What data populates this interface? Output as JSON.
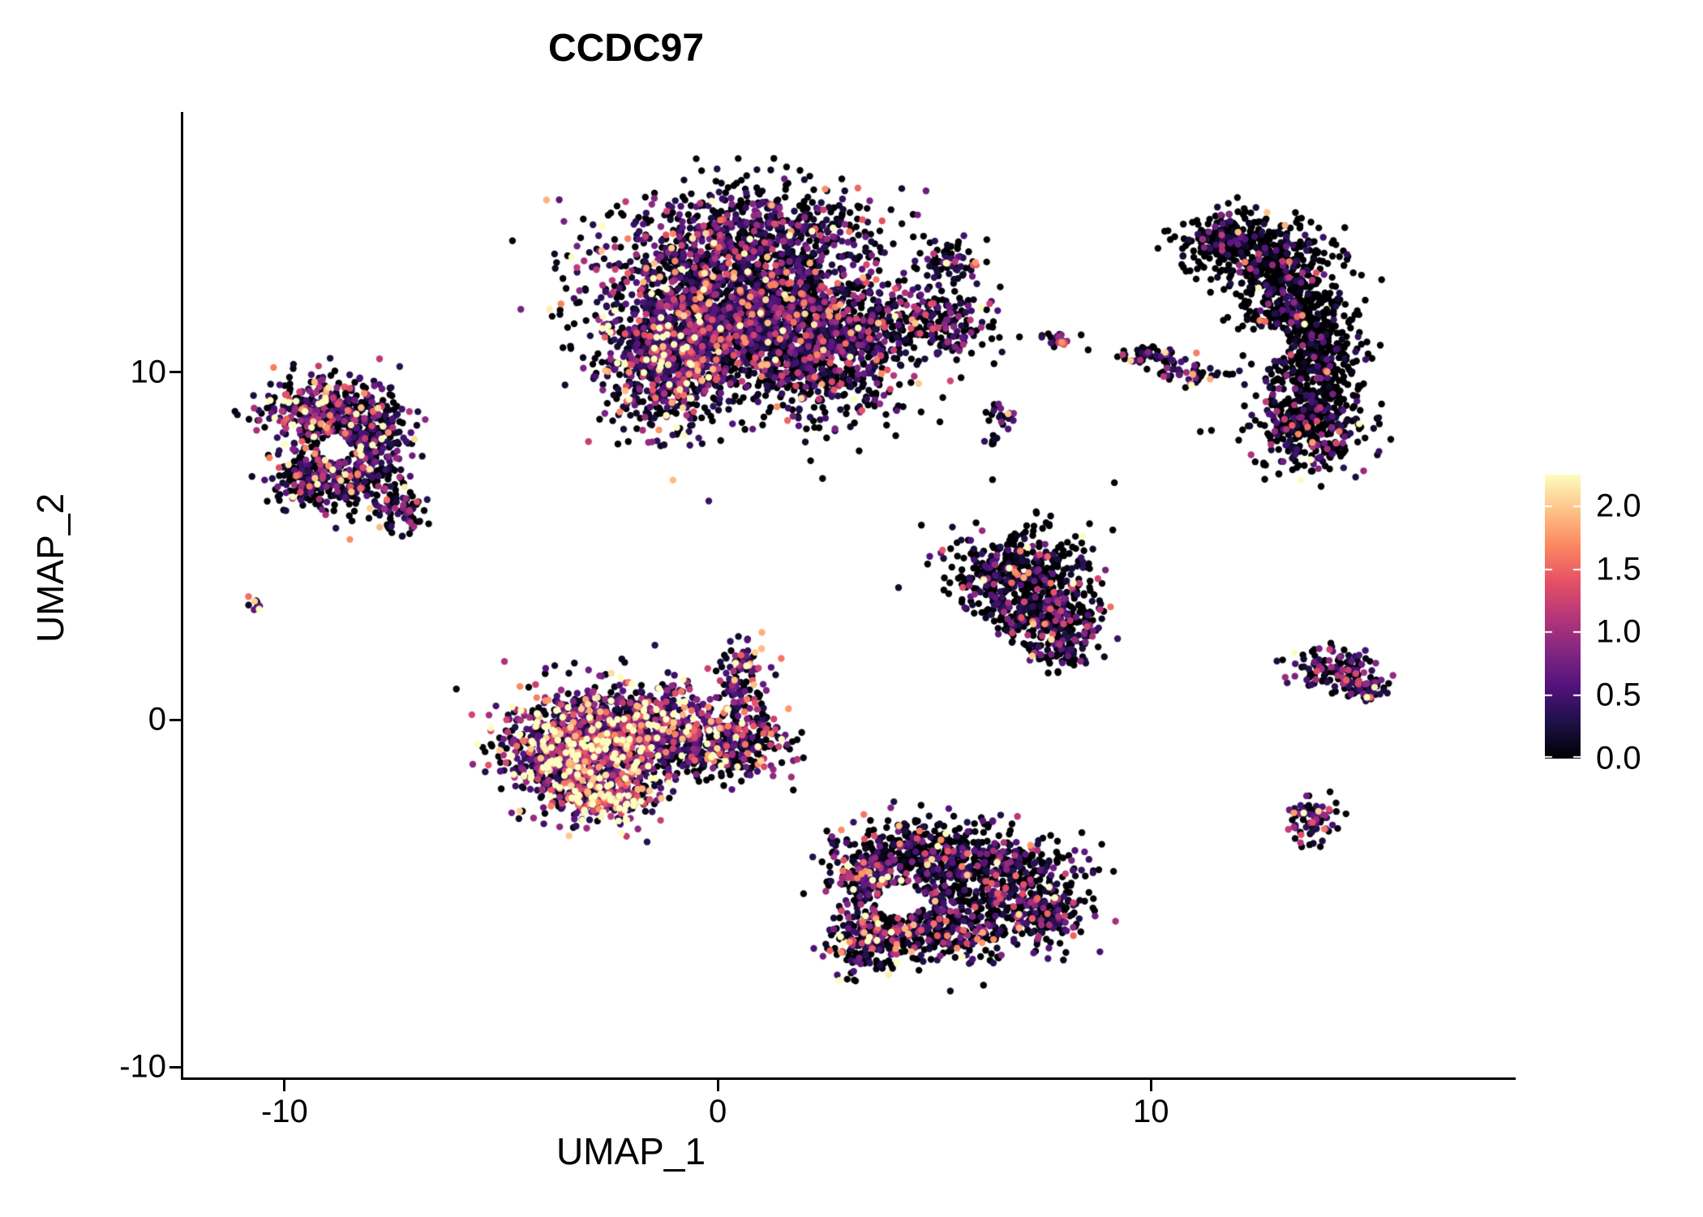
{
  "chart_data": {
    "type": "scatter",
    "title": "CCDC97",
    "xlabel": "UMAP_1",
    "ylabel": "UMAP_2",
    "x_ticks": [
      "-10",
      "0",
      "10"
    ],
    "x_tick_values": [
      -10,
      0,
      10
    ],
    "y_ticks": [
      "10",
      "0",
      "-10"
    ],
    "y_tick_values": [
      10,
      0,
      -10
    ],
    "xlim": [
      -12.3,
      18.4
    ],
    "ylim": [
      -10.3,
      17.45
    ],
    "grid": false,
    "background": "#ffffff",
    "point_radius_px": 4.2,
    "seed": 20,
    "colorbar": {
      "position": "right",
      "colormap": "magma",
      "domain": [
        0,
        2.25
      ],
      "ticks": [
        {
          "label": "2.0",
          "value": 2.0
        },
        {
          "label": "1.5",
          "value": 1.5
        },
        {
          "label": "1.0",
          "value": 1.0
        },
        {
          "label": "0.5",
          "value": 0.5
        },
        {
          "label": "0.0",
          "value": 0.0
        }
      ],
      "stops": [
        {
          "t": 0.0,
          "color": "#000004"
        },
        {
          "t": 0.125,
          "color": "#1d1147"
        },
        {
          "t": 0.25,
          "color": "#51127c"
        },
        {
          "t": 0.375,
          "color": "#822681"
        },
        {
          "t": 0.5,
          "color": "#b63679"
        },
        {
          "t": 0.625,
          "color": "#e65164"
        },
        {
          "t": 0.75,
          "color": "#fb8861"
        },
        {
          "t": 0.875,
          "color": "#fec287"
        },
        {
          "t": 1.0,
          "color": "#fcfdbf"
        }
      ]
    },
    "clusters": [
      {
        "name": "top-center-large",
        "blobs": [
          {
            "cx": 0.3,
            "cy": 12.3,
            "sdx": 1.5,
            "sdy": 1.2,
            "n": 1600,
            "p0": 0.38,
            "scale": 0.6
          },
          {
            "cx": 2.4,
            "cy": 10.8,
            "sdx": 1.1,
            "sdy": 1.0,
            "n": 1000,
            "p0": 0.42,
            "scale": 0.55
          },
          {
            "cx": -1.3,
            "cy": 9.9,
            "sdx": 0.8,
            "sdy": 0.9,
            "n": 450,
            "p0": 0.3,
            "scale": 0.7
          },
          {
            "cx": -0.6,
            "cy": 11.2,
            "sdx": 0.7,
            "sdy": 0.8,
            "n": 400,
            "p0": 0.3,
            "scale": 0.65
          },
          {
            "cx": 4.9,
            "cy": 11.4,
            "sdx": 0.8,
            "sdy": 0.45,
            "n": 220,
            "p0": 0.45,
            "scale": 0.55
          },
          {
            "cx": 1.3,
            "cy": 14.3,
            "sdx": 1.3,
            "sdy": 0.6,
            "n": 320,
            "p0": 0.5,
            "scale": 0.5
          },
          {
            "cx": 5.3,
            "cy": 13.2,
            "sdx": 0.35,
            "sdy": 0.3,
            "n": 70,
            "p0": 0.5,
            "scale": 0.5
          }
        ]
      },
      {
        "name": "left",
        "holes": [
          {
            "x": -8.85,
            "y": 7.8,
            "r": 0.38
          }
        ],
        "blobs": [
          {
            "cx": -9.2,
            "cy": 8.9,
            "sdx": 0.6,
            "sdy": 0.55,
            "n": 330,
            "p0": 0.3,
            "scale": 0.8
          },
          {
            "cx": -8.3,
            "cy": 7.3,
            "sdx": 0.55,
            "sdy": 0.65,
            "n": 300,
            "p0": 0.4,
            "scale": 0.6
          },
          {
            "cx": -9.4,
            "cy": 7.0,
            "sdx": 0.45,
            "sdy": 0.5,
            "n": 170,
            "p0": 0.45,
            "scale": 0.55
          },
          {
            "cx": -8.0,
            "cy": 8.6,
            "sdx": 0.5,
            "sdy": 0.5,
            "n": 150,
            "p0": 0.4,
            "scale": 0.6
          },
          {
            "cx": -7.3,
            "cy": 5.9,
            "sdx": 0.3,
            "sdy": 0.3,
            "n": 55,
            "p0": 0.4,
            "scale": 0.6
          }
        ]
      },
      {
        "name": "tiny-far-left",
        "blobs": [
          {
            "cx": -10.7,
            "cy": 3.3,
            "sdx": 0.1,
            "sdy": 0.1,
            "n": 9,
            "p0": 0.15,
            "scale": 0.9
          }
        ]
      },
      {
        "name": "center-left-high-expression",
        "blobs": [
          {
            "cx": -3.3,
            "cy": -0.9,
            "sdx": 0.8,
            "sdy": 0.75,
            "n": 850,
            "p0": 0.12,
            "scale": 0.95
          },
          {
            "cx": -1.8,
            "cy": -0.3,
            "sdx": 0.95,
            "sdy": 0.7,
            "n": 650,
            "p0": 0.2,
            "scale": 0.8
          },
          {
            "cx": 0.2,
            "cy": -0.7,
            "sdx": 0.75,
            "sdy": 0.5,
            "n": 320,
            "p0": 0.3,
            "scale": 0.7
          },
          {
            "cx": 0.55,
            "cy": 1.1,
            "sdx": 0.3,
            "sdy": 0.65,
            "n": 110,
            "p0": 0.3,
            "scale": 0.75
          },
          {
            "cx": -2.6,
            "cy": -2.2,
            "sdx": 0.6,
            "sdy": 0.4,
            "n": 250,
            "p0": 0.1,
            "scale": 1.05
          }
        ]
      },
      {
        "name": "middle-triangle",
        "blobs": [
          {
            "cx": 7.0,
            "cy": 4.3,
            "sdx": 0.8,
            "sdy": 0.6,
            "n": 420,
            "p0": 0.6,
            "scale": 0.5
          },
          {
            "cx": 7.6,
            "cy": 3.0,
            "sdx": 0.65,
            "sdy": 0.55,
            "n": 280,
            "p0": 0.55,
            "scale": 0.55
          },
          {
            "cx": 7.9,
            "cy": 2.0,
            "sdx": 0.35,
            "sdy": 0.3,
            "n": 80,
            "p0": 0.55,
            "scale": 0.5
          }
        ]
      },
      {
        "name": "right-crescent-dark",
        "holes": [
          {
            "x": 12.7,
            "y": 10.8,
            "r": 0.5
          }
        ],
        "blobs": [
          {
            "cx": 12.4,
            "cy": 13.5,
            "sdx": 0.85,
            "sdy": 0.5,
            "n": 330,
            "p0": 0.75,
            "scale": 0.45
          },
          {
            "cx": 13.3,
            "cy": 12.0,
            "sdx": 0.6,
            "sdy": 0.75,
            "n": 380,
            "p0": 0.8,
            "scale": 0.4
          },
          {
            "cx": 13.8,
            "cy": 10.2,
            "sdx": 0.55,
            "sdy": 0.8,
            "n": 380,
            "p0": 0.8,
            "scale": 0.4
          },
          {
            "cx": 13.6,
            "cy": 8.4,
            "sdx": 0.7,
            "sdy": 0.6,
            "n": 330,
            "p0": 0.65,
            "scale": 0.55
          },
          {
            "cx": 11.8,
            "cy": 13.9,
            "sdx": 0.45,
            "sdy": 0.3,
            "n": 120,
            "p0": 0.7,
            "scale": 0.45
          }
        ]
      },
      {
        "name": "small-top-middle-fragments",
        "blobs": [
          {
            "cx": 7.9,
            "cy": 10.9,
            "sdx": 0.18,
            "sdy": 0.14,
            "n": 26,
            "p0": 0.35,
            "scale": 0.6
          },
          {
            "cx": 10.0,
            "cy": 10.5,
            "sdx": 0.38,
            "sdy": 0.13,
            "n": 48,
            "p0": 0.4,
            "scale": 0.65
          },
          {
            "cx": 10.9,
            "cy": 10.0,
            "sdx": 0.38,
            "sdy": 0.13,
            "n": 48,
            "p0": 0.4,
            "scale": 0.65
          },
          {
            "cx": 6.6,
            "cy": 8.8,
            "sdx": 0.2,
            "sdy": 0.15,
            "n": 22,
            "p0": 0.45,
            "scale": 0.55
          },
          {
            "cx": 6.3,
            "cy": 8.1,
            "sdx": 0.12,
            "sdy": 0.1,
            "n": 8,
            "p0": 0.5,
            "scale": 0.5
          }
        ]
      },
      {
        "name": "bottom-center",
        "holes": [
          {
            "x": 4.2,
            "y": -5.2,
            "r": 0.5
          }
        ],
        "blobs": [
          {
            "cx": 4.4,
            "cy": -3.9,
            "sdx": 0.8,
            "sdy": 0.5,
            "n": 320,
            "p0": 0.5,
            "scale": 0.6
          },
          {
            "cx": 6.3,
            "cy": -4.3,
            "sdx": 0.9,
            "sdy": 0.6,
            "n": 400,
            "p0": 0.55,
            "scale": 0.6
          },
          {
            "cx": 5.1,
            "cy": -5.9,
            "sdx": 1.0,
            "sdy": 0.55,
            "n": 420,
            "p0": 0.5,
            "scale": 0.6
          },
          {
            "cx": 7.5,
            "cy": -5.5,
            "sdx": 0.55,
            "sdy": 0.5,
            "n": 200,
            "p0": 0.55,
            "scale": 0.6
          },
          {
            "cx": 3.5,
            "cy": -6.3,
            "sdx": 0.5,
            "sdy": 0.5,
            "n": 170,
            "p0": 0.35,
            "scale": 0.75
          },
          {
            "cx": 3.4,
            "cy": -4.6,
            "sdx": 0.4,
            "sdy": 0.4,
            "n": 130,
            "p0": 0.4,
            "scale": 0.7
          }
        ]
      },
      {
        "name": "right-arrow",
        "blobs": [
          {
            "cx": 14.2,
            "cy": 1.5,
            "sdx": 0.5,
            "sdy": 0.28,
            "n": 120,
            "p0": 0.35,
            "scale": 0.7
          },
          {
            "cx": 14.9,
            "cy": 0.9,
            "sdx": 0.3,
            "sdy": 0.18,
            "n": 55,
            "p0": 0.4,
            "scale": 0.65
          }
        ]
      },
      {
        "name": "right-small-round",
        "blobs": [
          {
            "cx": 13.7,
            "cy": -2.9,
            "sdx": 0.28,
            "sdy": 0.3,
            "n": 75,
            "p0": 0.35,
            "scale": 0.7
          }
        ]
      },
      {
        "name": "sparse-strays",
        "blobs": [
          {
            "cx": 3.0,
            "cy": 7.0,
            "sdx": 2.5,
            "sdy": 1.5,
            "n": 12,
            "p0": 0.5,
            "scale": 0.5
          }
        ]
      }
    ]
  }
}
